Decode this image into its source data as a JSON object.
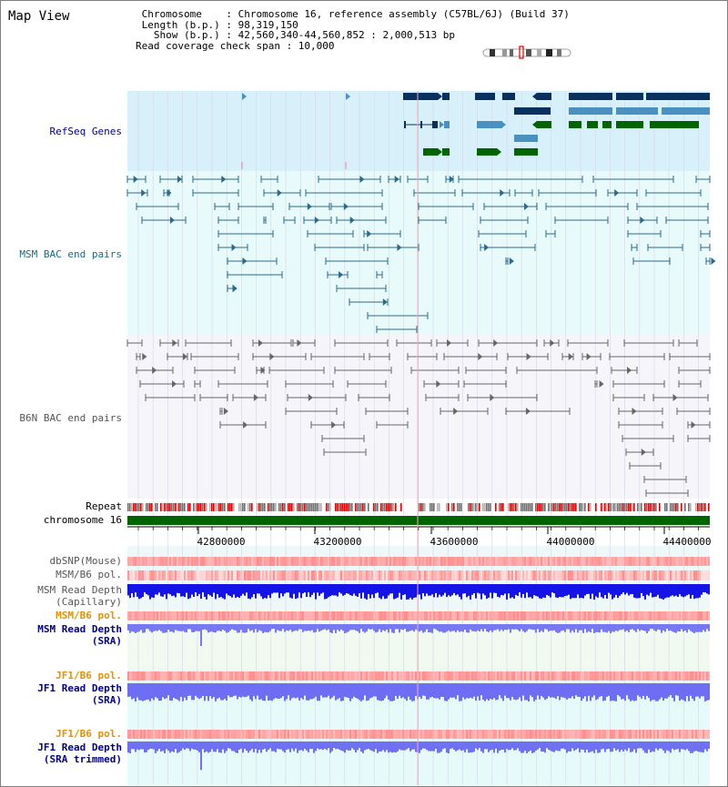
{
  "header": {
    "title": "Map View",
    "chromosome_line": " Chromosome    : Chromosome 16, reference assembly (C57BL/6J) (Build 37)",
    "length_line": " Length (b.p.) : 98,319,150",
    "show_line": "   Show (b.p.) : 42,560,340-44,560,852 : 2,000,513 bp",
    "coverage_line": "Read coverage check span : 10,000"
  },
  "tracks": {
    "refseq": "RefSeq Genes",
    "msm_bac": "MSM BAC end pairs",
    "b6n_bac": "B6N BAC end pairs",
    "repeat": "Repeat",
    "chromosome": "chromosome 16",
    "dbsnp": "dbSNP(Mouse)",
    "msm_pol": "MSM/B6 pol.",
    "msm_depth_cap_1": "MSM Read Depth",
    "msm_depth_cap_2": "(Capillary)",
    "msm_pol_sra": "MSM/B6 pol.",
    "msm_depth_sra_1": "MSM Read Depth",
    "msm_depth_sra_2": "(SRA)",
    "jf1_pol_1": "JF1/B6 pol.",
    "jf1_depth_1": "JF1 Read Depth",
    "jf1_depth_1b": "(SRA)",
    "jf1_pol_2": "JF1/B6 pol.",
    "jf1_depth_2": "JF1 Read Depth",
    "jf1_depth_2b": "(SRA trimmed)"
  },
  "axis": {
    "ticks": [
      "42800000",
      "43200000",
      "43600000",
      "44000000",
      "44400000"
    ]
  },
  "colors": {
    "refseq_bg": "#d8f0fa",
    "msm_bg": "#e8fafa",
    "b6n_bg": "#f6f6fa",
    "gene_dark": "#0a3060",
    "gene_mid": "#4a90c0",
    "gene_green": "#006400",
    "msm_pair": "#2a6a8a",
    "b6n_pair": "#666666",
    "chrom_green": "#006400",
    "depth_blue": "#1010e0",
    "depth_sra": "#7b7bf5",
    "pol_red": "#f06060",
    "label_blue": "#00008b",
    "label_teal": "#1a6a80",
    "label_gray": "#555555",
    "label_orange": "#e89000"
  }
}
